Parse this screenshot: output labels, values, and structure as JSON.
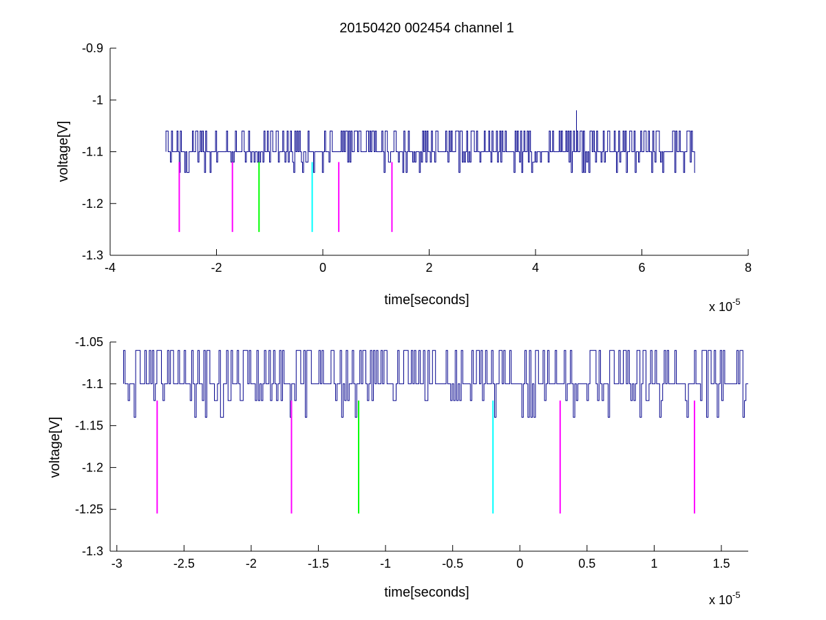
{
  "chart_data": [
    {
      "type": "line",
      "title": "20150420 002454 channel 1",
      "xlabel": "time[seconds]",
      "ylabel": "voltage[V]",
      "xlim": [
        -4,
        8
      ],
      "ylim": [
        -1.3,
        -0.9
      ],
      "x_multiplier": "x 10",
      "x_multiplier_exponent": "-5",
      "x_ticks": [
        -4,
        -2,
        0,
        2,
        4,
        6,
        8
      ],
      "x_tick_labels": [
        "-4",
        "-2",
        "0",
        "2",
        "4",
        "6",
        "8"
      ],
      "y_ticks": [
        -1.3,
        -1.2,
        -1.1,
        -1,
        -0.9
      ],
      "y_tick_labels": [
        "-1.3",
        "-1.2",
        "-1.1",
        "-1",
        "-0.9"
      ],
      "series": [
        {
          "color": "#00008b",
          "x_range": [
            -2.95,
            7.0
          ],
          "baseline": -1.1,
          "levels": [
            -1.06,
            -1.1,
            -1.12,
            -1.14
          ],
          "spike": {
            "x": 4.77,
            "y": -1.02
          }
        }
      ],
      "markers": [
        {
          "x": -2.7,
          "y_top": -1.12,
          "y_bottom": -1.255,
          "color": "#ff00ff"
        },
        {
          "x": -1.7,
          "y_top": -1.12,
          "y_bottom": -1.255,
          "color": "#ff00ff"
        },
        {
          "x": -1.2,
          "y_top": -1.12,
          "y_bottom": -1.255,
          "color": "#00ff00"
        },
        {
          "x": -0.2,
          "y_top": -1.12,
          "y_bottom": -1.255,
          "color": "#00ffff"
        },
        {
          "x": 0.3,
          "y_top": -1.12,
          "y_bottom": -1.255,
          "color": "#ff00ff"
        },
        {
          "x": 1.3,
          "y_top": -1.12,
          "y_bottom": -1.255,
          "color": "#ff00ff"
        }
      ],
      "grid": false
    },
    {
      "type": "line",
      "title": "",
      "xlabel": "time[seconds]",
      "ylabel": "voltage[V]",
      "xlim": [
        -3.05,
        1.7
      ],
      "ylim": [
        -1.3,
        -1.05
      ],
      "x_multiplier": "x 10",
      "x_multiplier_exponent": "-5",
      "x_ticks": [
        -3,
        -2.5,
        -2,
        -1.5,
        -1,
        -0.5,
        0,
        0.5,
        1,
        1.5
      ],
      "x_tick_labels": [
        "-3",
        "-2.5",
        "-2",
        "-1.5",
        "-1",
        "-0.5",
        "0",
        "0.5",
        "1",
        "1.5"
      ],
      "y_ticks": [
        -1.3,
        -1.25,
        -1.2,
        -1.15,
        -1.1,
        -1.05
      ],
      "y_tick_labels": [
        "-1.3",
        "-1.25",
        "-1.2",
        "-1.15",
        "-1.1",
        "-1.05"
      ],
      "series": [
        {
          "color": "#00008b",
          "x_range": [
            -2.95,
            1.7
          ],
          "baseline": -1.1,
          "levels": [
            -1.06,
            -1.1,
            -1.12,
            -1.14
          ]
        }
      ],
      "markers": [
        {
          "x": -2.7,
          "y_top": -1.12,
          "y_bottom": -1.255,
          "color": "#ff00ff"
        },
        {
          "x": -1.7,
          "y_top": -1.12,
          "y_bottom": -1.255,
          "color": "#ff00ff"
        },
        {
          "x": -1.2,
          "y_top": -1.12,
          "y_bottom": -1.255,
          "color": "#00ff00"
        },
        {
          "x": -0.2,
          "y_top": -1.12,
          "y_bottom": -1.255,
          "color": "#00ffff"
        },
        {
          "x": 0.3,
          "y_top": -1.12,
          "y_bottom": -1.255,
          "color": "#ff00ff"
        },
        {
          "x": 1.3,
          "y_top": -1.12,
          "y_bottom": -1.255,
          "color": "#ff00ff"
        }
      ],
      "grid": false
    }
  ]
}
